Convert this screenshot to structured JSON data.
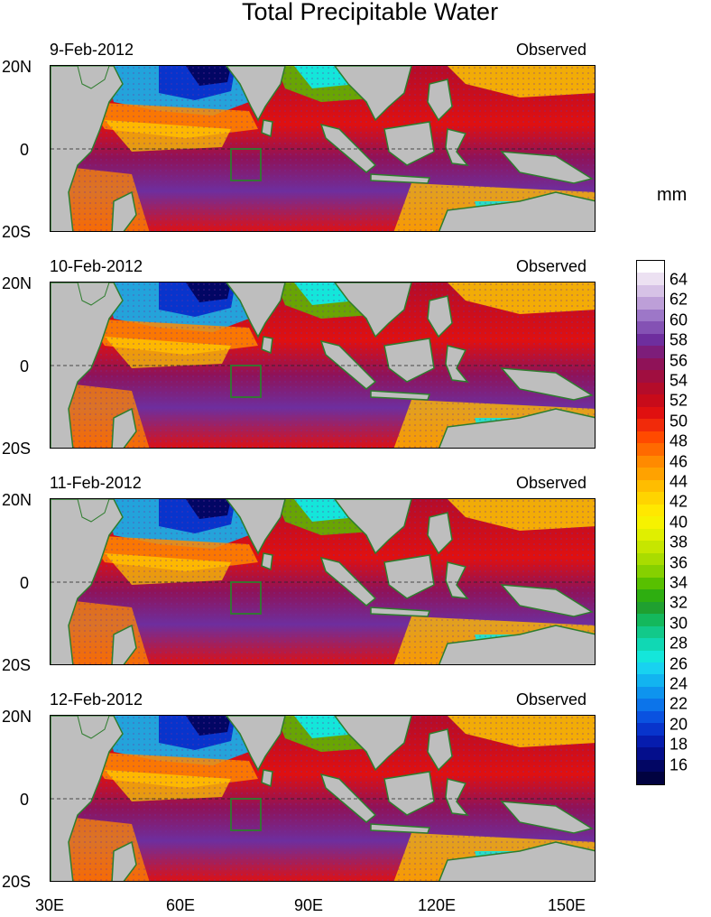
{
  "title": "Total Precipitable Water",
  "unit": "mm",
  "panels": [
    {
      "date": "9-Feb-2012",
      "tag": "Observed"
    },
    {
      "date": "10-Feb-2012",
      "tag": "Observed"
    },
    {
      "date": "11-Feb-2012",
      "tag": "Observed"
    },
    {
      "date": "12-Feb-2012",
      "tag": "Observed"
    }
  ],
  "lat_labels": [
    "20N",
    "0",
    "20S"
  ],
  "lon_labels": [
    "30E",
    "60E",
    "90E",
    "120E",
    "150E"
  ],
  "colorbar": {
    "labels": [
      "64",
      "62",
      "60",
      "58",
      "56",
      "54",
      "52",
      "50",
      "48",
      "46",
      "44",
      "42",
      "40",
      "38",
      "36",
      "34",
      "32",
      "30",
      "28",
      "26",
      "24",
      "22",
      "20",
      "18",
      "16"
    ],
    "colors": [
      "#ffffff",
      "#ece1f2",
      "#d6c2e6",
      "#bd9fd8",
      "#9d77c8",
      "#8452b4",
      "#6e2e9e",
      "#7d1d7a",
      "#8f1258",
      "#a00e40",
      "#b40c2a",
      "#c80b1a",
      "#e01010",
      "#f12a0a",
      "#ff4a00",
      "#ff6a00",
      "#ff8a00",
      "#ffa200",
      "#ffbd00",
      "#ffd400",
      "#ffe800",
      "#f6f200",
      "#e0ef00",
      "#c6e600",
      "#a9dc00",
      "#86d000",
      "#58c000",
      "#2eae10",
      "#1fa030",
      "#14b85c",
      "#12c98a",
      "#10d8b4",
      "#14e6da",
      "#18d2f0",
      "#12b4f0",
      "#0e94ee",
      "#0c74ea",
      "#0a52e0",
      "#0834cc",
      "#061cae",
      "#040e8c",
      "#020664",
      "#010240"
    ]
  }
}
